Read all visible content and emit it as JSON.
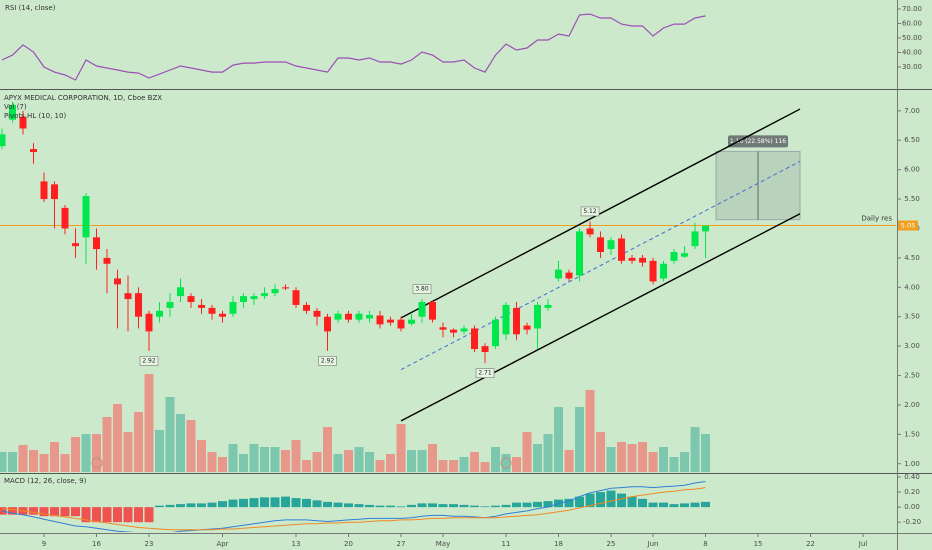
{
  "chart_data": {
    "type": "candlestick",
    "title": "APYX MEDICAL CORPORATION, 1D, Cboe BZX",
    "xlim": [
      -0.19,
      85.14
    ],
    "xticks": [
      {
        "value": 4,
        "label": "9"
      },
      {
        "value": 9,
        "label": "16"
      },
      {
        "value": 14,
        "label": "23"
      },
      {
        "value": 21,
        "label": "Apr"
      },
      {
        "value": 28,
        "label": "13"
      },
      {
        "value": 33,
        "label": "20"
      },
      {
        "value": 38,
        "label": "27"
      },
      {
        "value": 42,
        "label": "May"
      },
      {
        "value": 48,
        "label": "11"
      },
      {
        "value": 53,
        "label": "18"
      },
      {
        "value": 58,
        "label": "25"
      },
      {
        "value": 62,
        "label": "Jun"
      },
      {
        "value": 67,
        "label": "8"
      },
      {
        "value": 72,
        "label": "15"
      },
      {
        "value": 77,
        "label": "22"
      },
      {
        "value": 82,
        "label": "Jul"
      }
    ],
    "ylim": [
      0.86,
      7.32
    ],
    "yticks": [
      {
        "value": 1,
        "label": "1.00"
      },
      {
        "value": 1.5,
        "label": "1.50"
      },
      {
        "value": 2,
        "label": "2.00"
      },
      {
        "value": 2.5,
        "label": "2.50"
      },
      {
        "value": 3,
        "label": "3.00"
      },
      {
        "value": 3.5,
        "label": "3.50"
      },
      {
        "value": 4,
        "label": "4.00"
      },
      {
        "value": 4.5,
        "label": "4.50"
      },
      {
        "value": 5,
        "label": "5.00"
      },
      {
        "value": 5.5,
        "label": "5.50"
      },
      {
        "value": 6,
        "label": "6.00"
      },
      {
        "value": 6.5,
        "label": "6.50"
      },
      {
        "value": 7,
        "label": "7.00"
      }
    ],
    "up_color": "#00e64d",
    "down_color": "#ff1f1f",
    "open": [
      6.4,
      6.85,
      6.9,
      6.35,
      5.8,
      5.75,
      5.35,
      4.75,
      4.85,
      4.85,
      4.5,
      4.15,
      3.9,
      3.9,
      3.55,
      3.5,
      3.65,
      3.85,
      3.85,
      3.7,
      3.65,
      3.55,
      3.55,
      3.75,
      3.8,
      3.85,
      3.9,
      4.0,
      3.95,
      3.7,
      3.6,
      3.5,
      3.45,
      3.55,
      3.45,
      3.47,
      3.52,
      3.45,
      3.45,
      3.38,
      3.5,
      3.75,
      3.32,
      3.28,
      3.25,
      3.3,
      3.0,
      3.0,
      3.2,
      3.65,
      3.35,
      3.3,
      3.65,
      4.15,
      4.25,
      4.2,
      5.0,
      4.85,
      4.65,
      4.83,
      4.5,
      4.5,
      4.45,
      4.15,
      4.45,
      4.52,
      4.7,
      4.95
    ],
    "high": [
      6.7,
      7.15,
      7.0,
      6.45,
      5.95,
      5.8,
      5.4,
      5.0,
      5.6,
      5.0,
      4.65,
      4.3,
      4.2,
      4.0,
      3.6,
      3.75,
      3.9,
      4.15,
      3.9,
      3.8,
      3.7,
      3.6,
      3.85,
      3.9,
      3.9,
      4.0,
      4.05,
      4.05,
      4.0,
      3.75,
      3.65,
      3.55,
      3.6,
      3.6,
      3.6,
      3.6,
      3.6,
      3.5,
      3.5,
      3.55,
      3.8,
      3.78,
      3.4,
      3.3,
      3.35,
      3.35,
      3.05,
      3.5,
      3.75,
      3.75,
      3.4,
      3.75,
      3.8,
      4.45,
      4.3,
      5.0,
      5.12,
      4.95,
      4.85,
      4.9,
      4.55,
      4.55,
      4.5,
      4.45,
      4.65,
      4.7,
      5.1,
      5.05
    ],
    "low": [
      6.35,
      6.8,
      6.6,
      6.1,
      5.45,
      5.0,
      4.9,
      4.5,
      4.4,
      4.3,
      3.9,
      3.3,
      3.25,
      3.3,
      2.92,
      3.4,
      3.5,
      3.75,
      3.65,
      3.55,
      3.45,
      3.4,
      3.5,
      3.65,
      3.7,
      3.8,
      3.85,
      3.95,
      3.65,
      3.55,
      3.35,
      2.92,
      3.4,
      3.4,
      3.4,
      3.4,
      3.3,
      3.35,
      3.25,
      3.35,
      3.4,
      3.4,
      3.15,
      3.15,
      3.2,
      2.9,
      2.71,
      2.95,
      3.1,
      3.1,
      3.2,
      2.95,
      3.6,
      4.1,
      4.1,
      4.1,
      4.85,
      4.5,
      4.55,
      4.4,
      4.4,
      4.35,
      4.05,
      4.1,
      4.4,
      4.5,
      4.65,
      4.5
    ],
    "close": [
      6.6,
      7.1,
      6.7,
      6.3,
      5.5,
      5.5,
      5.0,
      4.7,
      5.55,
      4.65,
      4.4,
      4.05,
      3.8,
      3.5,
      3.25,
      3.6,
      3.75,
      4.0,
      3.75,
      3.65,
      3.55,
      3.5,
      3.75,
      3.85,
      3.85,
      3.9,
      3.97,
      3.98,
      3.7,
      3.6,
      3.5,
      3.25,
      3.55,
      3.45,
      3.55,
      3.53,
      3.37,
      3.4,
      3.3,
      3.45,
      3.75,
      3.45,
      3.28,
      3.23,
      3.3,
      2.95,
      2.9,
      3.45,
      3.7,
      3.2,
      3.28,
      3.7,
      3.7,
      4.3,
      4.15,
      4.95,
      4.9,
      4.6,
      4.8,
      4.45,
      4.45,
      4.42,
      4.1,
      4.4,
      4.6,
      4.58,
      4.95,
      5.05
    ],
    "volume": {
      "name": "Vol (7)",
      "vlim": [
        0,
        380
      ],
      "up_color": "#7cc7ae",
      "down_color": "#e8988a",
      "values": [
        20,
        20,
        27,
        22,
        18,
        30,
        18,
        35,
        38,
        38,
        55,
        68,
        40,
        60,
        98,
        42,
        75,
        58,
        52,
        32,
        20,
        15,
        28,
        18,
        28,
        25,
        25,
        22,
        32,
        12,
        20,
        45,
        18,
        22,
        25,
        20,
        12,
        18,
        48,
        22,
        22,
        28,
        12,
        12,
        15,
        20,
        10,
        25,
        18,
        15,
        40,
        28,
        38,
        65,
        22,
        65,
        82,
        40,
        25,
        30,
        28,
        30,
        20,
        25,
        15,
        20,
        45,
        38
      ]
    },
    "pivots": {
      "name": "Pivots HL (10, 10)",
      "points": [
        {
          "index": 14,
          "kind": "low",
          "value": 2.92,
          "label": "2.92"
        },
        {
          "index": 31,
          "kind": "low",
          "value": 2.92,
          "label": "2.92"
        },
        {
          "index": 40,
          "kind": "high",
          "value": 3.8,
          "label": "3.80"
        },
        {
          "index": 46,
          "kind": "low",
          "value": 2.71,
          "label": "2.71"
        },
        {
          "index": 56,
          "kind": "high",
          "value": 5.12,
          "label": "5.12"
        }
      ]
    },
    "trend_lines": [
      {
        "from": [
          38,
          3.48
        ],
        "to": [
          76,
          7.03
        ],
        "color": "#000000",
        "dashed": false
      },
      {
        "from": [
          38,
          2.6
        ],
        "to": [
          76,
          6.14
        ],
        "color": "#3d6fd6",
        "dashed": true
      },
      {
        "from": [
          38,
          1.73
        ],
        "to": [
          76,
          5.25
        ],
        "color": "#000000",
        "dashed": false
      }
    ],
    "horizontal_lines": [
      {
        "value": 5.05,
        "label": "Daily res",
        "tag": "5.05",
        "color": "#f0a020"
      }
    ],
    "measure": {
      "from_index": 68,
      "to_index": 76,
      "low": 5.15,
      "high": 6.31,
      "label": "1.16 (22.58%) 116"
    },
    "rsi": {
      "name": "RSI (14, close)",
      "color": "#9c4fb5",
      "ylim": [
        15.5,
        76.2
      ],
      "yticks": [
        {
          "value": 30,
          "label": "30.00"
        },
        {
          "value": 40,
          "label": "40.00"
        },
        {
          "value": 50,
          "label": "50.00"
        },
        {
          "value": 60,
          "label": "60.00"
        },
        {
          "value": 70,
          "label": "70.00"
        }
      ],
      "values": [
        34.8,
        38.2,
        45.2,
        40.3,
        30.0,
        26.5,
        24.5,
        21.0,
        34.8,
        30.7,
        29.3,
        27.9,
        26.5,
        25.8,
        22.4,
        25.1,
        27.9,
        30.7,
        29.3,
        27.9,
        26.5,
        26.5,
        31.3,
        32.7,
        32.7,
        33.4,
        33.4,
        33.4,
        30.7,
        29.3,
        27.9,
        26.5,
        36.2,
        36.2,
        34.8,
        36.2,
        33.4,
        33.4,
        32.0,
        34.8,
        40.3,
        38.2,
        33.4,
        33.4,
        34.8,
        29.3,
        26.5,
        38.2,
        45.8,
        41.7,
        43.1,
        48.6,
        48.6,
        52.7,
        51.4,
        65.9,
        66.5,
        63.8,
        63.8,
        59.6,
        58.3,
        58.3,
        51.4,
        56.9,
        59.6,
        59.6,
        63.8,
        65.2
      ]
    },
    "macd": {
      "name": "MACD (12, 26, close, 9)",
      "ylim": [
        -0.33,
        0.44
      ],
      "yticks": [
        {
          "value": -0.2,
          "label": "-0.20"
        },
        {
          "value": 0,
          "label": "0.00"
        },
        {
          "value": 0.2,
          "label": "0.20"
        },
        {
          "value": 0.4,
          "label": "0.40"
        }
      ],
      "histogram_up_color": "#26a69a",
      "histogram_down_color": "#ef5350",
      "histogram": [
        -0.1,
        -0.1,
        -0.1,
        -0.1,
        -0.12,
        -0.12,
        -0.12,
        -0.12,
        -0.2,
        -0.2,
        -0.2,
        -0.2,
        -0.2,
        -0.2,
        -0.2,
        0.02,
        0.03,
        0.04,
        0.05,
        0.05,
        0.06,
        0.08,
        0.1,
        0.11,
        0.12,
        0.13,
        0.13,
        0.14,
        0.12,
        0.11,
        0.09,
        0.07,
        0.06,
        0.05,
        0.04,
        0.03,
        0.02,
        0.02,
        0.01,
        0.03,
        0.05,
        0.05,
        0.04,
        0.04,
        0.03,
        0.02,
        0.01,
        0.02,
        0.03,
        0.06,
        0.06,
        0.07,
        0.08,
        0.1,
        0.11,
        0.14,
        0.18,
        0.2,
        0.22,
        0.18,
        0.14,
        0.11,
        0.06,
        0.06,
        0.04,
        0.05,
        0.06,
        0.07
      ],
      "series": [
        {
          "color": "#2f7fd8",
          "values": [
            -0.05,
            -0.08,
            -0.1,
            -0.13,
            -0.16,
            -0.19,
            -0.22,
            -0.25,
            -0.26,
            -0.28,
            -0.3,
            -0.32,
            -0.33,
            -0.34,
            -0.36,
            -0.35,
            -0.34,
            -0.32,
            -0.31,
            -0.3,
            -0.29,
            -0.28,
            -0.26,
            -0.24,
            -0.22,
            -0.2,
            -0.18,
            -0.17,
            -0.17,
            -0.17,
            -0.18,
            -0.19,
            -0.18,
            -0.17,
            -0.16,
            -0.15,
            -0.15,
            -0.15,
            -0.15,
            -0.14,
            -0.12,
            -0.11,
            -0.11,
            -0.12,
            -0.12,
            -0.13,
            -0.14,
            -0.12,
            -0.09,
            -0.07,
            -0.05,
            -0.02,
            0.0,
            0.05,
            0.08,
            0.14,
            0.19,
            0.22,
            0.25,
            0.26,
            0.27,
            0.27,
            0.26,
            0.27,
            0.28,
            0.29,
            0.32,
            0.34
          ]
        },
        {
          "color": "#f08a24",
          "values": [
            -0.02,
            -0.03,
            -0.05,
            -0.07,
            -0.09,
            -0.11,
            -0.13,
            -0.15,
            -0.17,
            -0.19,
            -0.21,
            -0.23,
            -0.25,
            -0.27,
            -0.28,
            -0.29,
            -0.3,
            -0.3,
            -0.3,
            -0.3,
            -0.3,
            -0.29,
            -0.29,
            -0.28,
            -0.27,
            -0.26,
            -0.25,
            -0.24,
            -0.23,
            -0.22,
            -0.22,
            -0.21,
            -0.21,
            -0.2,
            -0.2,
            -0.19,
            -0.18,
            -0.18,
            -0.17,
            -0.17,
            -0.16,
            -0.15,
            -0.15,
            -0.14,
            -0.14,
            -0.14,
            -0.14,
            -0.14,
            -0.13,
            -0.12,
            -0.11,
            -0.1,
            -0.08,
            -0.06,
            -0.04,
            -0.01,
            0.02,
            0.05,
            0.08,
            0.11,
            0.14,
            0.16,
            0.18,
            0.2,
            0.21,
            0.23,
            0.24,
            0.26
          ]
        }
      ]
    }
  }
}
